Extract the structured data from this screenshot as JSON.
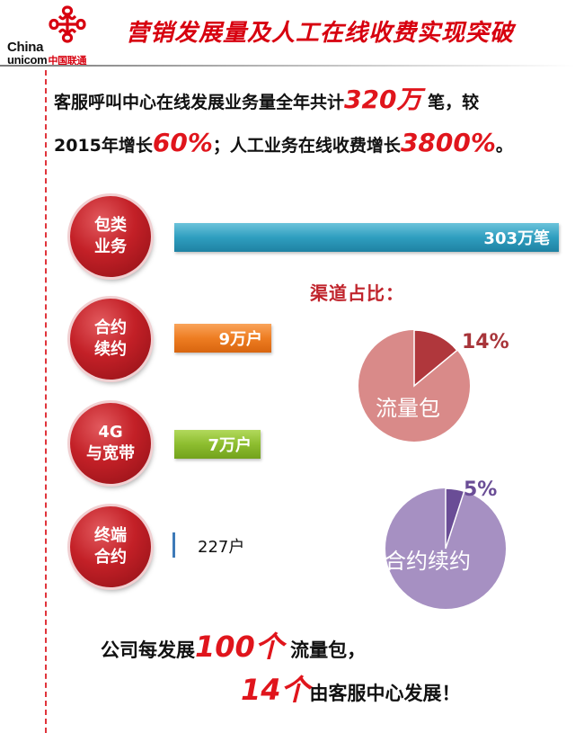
{
  "header": {
    "logo_line1": "China",
    "logo_line2": "unicom",
    "logo_cn": "中国联通",
    "title": "营销发展量及人工在线收费实现突破"
  },
  "intro": {
    "line1_a": "客服呼叫中心在线发展业务量全年共计",
    "line1_num": "320万",
    "line1_b": " 笔，较",
    "line2_a": "2015年增长",
    "line2_num1": "60%",
    "line2_b": "；人工业务在线收费增长",
    "line2_num2": "3800%",
    "line2_c": "。"
  },
  "categories": [
    {
      "line1": "包类",
      "line2": "业务",
      "value_label": "303万笔"
    },
    {
      "line1": "合约",
      "line2": "续约",
      "value_label": "9万户"
    },
    {
      "line1": "4G",
      "line2": "与宽带",
      "value_label": "7万户"
    },
    {
      "line1": "终端",
      "line2": "合约",
      "value_label": "227户"
    }
  ],
  "chart_data": {
    "type": "bar",
    "orientation": "horizontal",
    "categories": [
      "包类业务",
      "合约续约",
      "4G与宽带",
      "终端合约"
    ],
    "values": [
      3030000,
      90000,
      70000,
      227
    ],
    "value_labels": [
      "303万笔",
      "9万户",
      "7万户",
      "227户"
    ]
  },
  "channel": {
    "title": "渠道占比：",
    "pies": [
      {
        "label": "流量包",
        "percent": 14,
        "percent_label": "14%",
        "color": "#d98a89",
        "slice_color": "#b0373c"
      },
      {
        "label": "合约续约",
        "percent": 5,
        "percent_label": "5%",
        "color": "#a690c2",
        "slice_color": "#6a4d96"
      }
    ]
  },
  "conclusion": {
    "line1_a": "公司每发展",
    "line1_num": "100个",
    "line1_b": " 流量包，",
    "line2_num": "14个",
    "line2_b": "由客服中心发展！"
  },
  "colors": {
    "accent_red": "#d7000f",
    "bar_blue": "#2f9ebf",
    "bar_orange": "#ee7d22",
    "bar_green": "#8dbd2f",
    "bar_thin": "#3e7ab8"
  }
}
